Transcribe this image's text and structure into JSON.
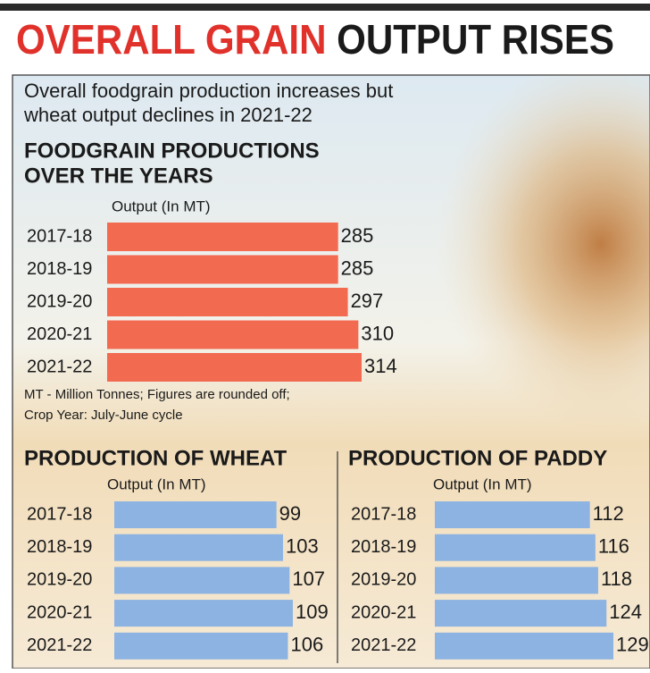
{
  "title": [
    "OVERALL GRAIN",
    "OUTPUT RISES"
  ],
  "subtitle": [
    "Overall foodgrain production increases but",
    "wheat output declines in 2021-22"
  ],
  "note": [
    "MT - Million Tonnes; Figures are rounded off;",
    "Crop Year: July-June cycle"
  ],
  "chart_data": [
    {
      "type": "bar",
      "orientation": "horizontal",
      "title": [
        "FOODGRAIN PRODUCTIONS",
        "OVER THE YEARS"
      ],
      "axis_label": "Output (In MT)",
      "categories": [
        "2017-18",
        "2018-19",
        "2019-20",
        "2020-21",
        "2021-22"
      ],
      "values": [
        285,
        285,
        297,
        310,
        314
      ],
      "color": "#f26a50"
    },
    {
      "type": "bar",
      "orientation": "horizontal",
      "title": [
        "PRODUCTION OF WHEAT"
      ],
      "axis_label": "Output (In MT)",
      "categories": [
        "2017-18",
        "2018-19",
        "2019-20",
        "2020-21",
        "2021-22"
      ],
      "values": [
        99,
        103,
        107,
        109,
        106
      ],
      "color": "#8db3e2"
    },
    {
      "type": "bar",
      "orientation": "horizontal",
      "title": [
        "PRODUCTION OF PADDY"
      ],
      "axis_label": "Output (In MT)",
      "categories": [
        "2017-18",
        "2018-19",
        "2019-20",
        "2020-21",
        "2021-22"
      ],
      "values": [
        112,
        116,
        118,
        124,
        129
      ],
      "color": "#8db3e2"
    }
  ]
}
